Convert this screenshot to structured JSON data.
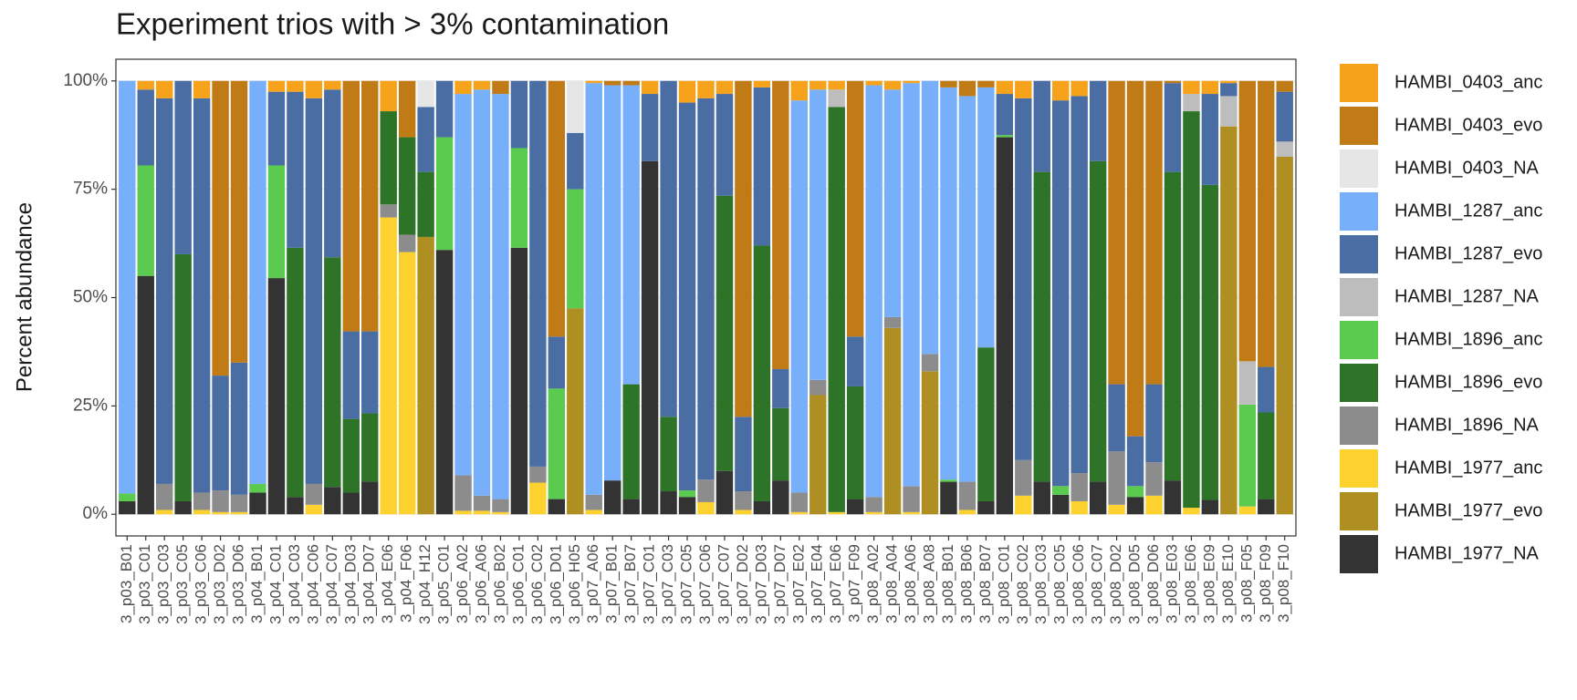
{
  "chart_data": {
    "type": "stacked_bar",
    "title": "Experiment trios with > 3% contamination",
    "y_label": "Percent abundance",
    "categories": [
      "3_p03_B01",
      "3_p03_C01",
      "3_p03_C03",
      "3_p03_C05",
      "3_p03_C06",
      "3_p03_D02",
      "3_p03_D06",
      "3_p04_B01",
      "3_p04_C01",
      "3_p04_C03",
      "3_p04_C06",
      "3_p04_C07",
      "3_p04_D03",
      "3_p04_D07",
      "3_p04_E06",
      "3_p04_F06",
      "3_p04_H12",
      "3_p05_C01",
      "3_p06_A02",
      "3_p06_A06",
      "3_p06_B02",
      "3_p06_C01",
      "3_p06_C02",
      "3_p06_D01",
      "3_p06_H05",
      "3_p07_A06",
      "3_p07_B01",
      "3_p07_B07",
      "3_p07_C01",
      "3_p07_C03",
      "3_p07_C05",
      "3_p07_C06",
      "3_p07_C07",
      "3_p07_D02",
      "3_p07_D03",
      "3_p07_D07",
      "3_p07_E02",
      "3_p07_E04",
      "3_p07_E06",
      "3_p07_F09",
      "3_p08_A02",
      "3_p08_A04",
      "3_p08_A06",
      "3_p08_A08",
      "3_p08_B01",
      "3_p08_B06",
      "3_p08_B07",
      "3_p08_C01",
      "3_p08_C02",
      "3_p08_C03",
      "3_p08_C05",
      "3_p08_C06",
      "3_p08_C07",
      "3_p08_D02",
      "3_p08_D05",
      "3_p08_D06",
      "3_p08_E03",
      "3_p08_E06",
      "3_p08_E09",
      "3_p08_E10",
      "3_p08_F05",
      "3_p08_F09",
      "3_p08_F10"
    ],
    "series": [
      {
        "name": "HAMBI_0403_anc",
        "color": "#F7A21B",
        "values": [
          0,
          2,
          4,
          0,
          4,
          0,
          0,
          0,
          2.5,
          2.5,
          4,
          2,
          0,
          0,
          7,
          0,
          0,
          0,
          3,
          2,
          0,
          0,
          0,
          0,
          0,
          0.5,
          0,
          0,
          3,
          0,
          5,
          4,
          3,
          0,
          1.5,
          0,
          4.5,
          2,
          2,
          0,
          1,
          2,
          0.5,
          0,
          0,
          0,
          0,
          3,
          4,
          0,
          4.5,
          3.5,
          0,
          0,
          0,
          0,
          0,
          3,
          3,
          0.5,
          0,
          0,
          0
        ]
      },
      {
        "name": "HAMBI_0403_evo",
        "color": "#C07A16",
        "values": [
          0,
          0,
          0,
          0,
          0,
          68,
          65,
          0,
          0,
          0,
          0,
          0,
          57.8,
          57.8,
          0,
          13,
          0,
          0,
          0,
          0,
          3,
          0,
          0,
          59,
          0,
          0,
          1,
          1,
          0,
          0,
          0,
          0,
          0,
          77.5,
          0,
          66.5,
          0,
          0,
          0,
          59,
          0,
          0,
          0,
          0,
          1.5,
          3.5,
          1.5,
          0,
          0,
          0,
          0,
          0,
          0,
          70,
          82,
          70,
          0.5,
          0,
          0,
          0,
          64.7,
          66,
          2.5
        ]
      },
      {
        "name": "HAMBI_0403_NA",
        "color": "#E6E6E6",
        "values": [
          0,
          0,
          0,
          0,
          0,
          0,
          0,
          0,
          0,
          0,
          0,
          0,
          0,
          0,
          0,
          0,
          6,
          0,
          0,
          0,
          0,
          0,
          0,
          0,
          12,
          0,
          0,
          0,
          0,
          0,
          0,
          0,
          0,
          0,
          0,
          0,
          0,
          0,
          0,
          0,
          0,
          0,
          0,
          0,
          0,
          0,
          0,
          0,
          0,
          0,
          0,
          0,
          0,
          0,
          0,
          0,
          0,
          0,
          0,
          0,
          0,
          0,
          0
        ]
      },
      {
        "name": "HAMBI_1287_anc",
        "color": "#77AFFA",
        "values": [
          95.2,
          0,
          0,
          0,
          0,
          0,
          0,
          93,
          0,
          0,
          0,
          0,
          0,
          0,
          0,
          0,
          0,
          0,
          88,
          93.7,
          93.5,
          0,
          0,
          0,
          0,
          95,
          91.2,
          69,
          0,
          0,
          0,
          0,
          0,
          0,
          0,
          0,
          90.5,
          67,
          0,
          0,
          95,
          52.5,
          93,
          63,
          90.5,
          89,
          60,
          0,
          0,
          0,
          0,
          0,
          0,
          0,
          0,
          0,
          0,
          0,
          0,
          0,
          0,
          0,
          0
        ]
      },
      {
        "name": "HAMBI_1287_evo",
        "color": "#4A6EA3",
        "values": [
          0,
          17.5,
          89,
          40,
          91,
          26.5,
          30.5,
          0,
          17,
          36,
          89,
          38.7,
          20.2,
          18.9,
          0,
          0,
          15,
          13,
          0,
          0,
          0,
          15.5,
          89,
          12,
          13,
          0,
          0,
          0,
          15.5,
          77.5,
          89.5,
          88,
          23.5,
          17.2,
          36.5,
          9,
          0,
          0,
          0,
          11.5,
          0,
          0,
          0,
          0,
          0,
          0,
          0,
          9.5,
          83.5,
          21,
          89,
          87,
          18.5,
          15.5,
          11.5,
          18,
          20.5,
          0,
          21,
          3,
          0,
          10.5,
          11.5
        ]
      },
      {
        "name": "HAMBI_1287_NA",
        "color": "#BDBDBD",
        "values": [
          0,
          0,
          0,
          0,
          0,
          0,
          0,
          0,
          0,
          0,
          0,
          0,
          0,
          0,
          0,
          0,
          0,
          0,
          0,
          0,
          0,
          0,
          0,
          0,
          0,
          0,
          0,
          0,
          0,
          0,
          0,
          0,
          0,
          0,
          0,
          0,
          0,
          0,
          4,
          0,
          0,
          0,
          0,
          0,
          0,
          0,
          0,
          0,
          0,
          0,
          0,
          0,
          0,
          0,
          0,
          0,
          0,
          4,
          0,
          7,
          10,
          0,
          3.5
        ]
      },
      {
        "name": "HAMBI_1896_anc",
        "color": "#5ACB4F",
        "values": [
          1.8,
          25.5,
          0,
          0,
          0,
          0,
          0,
          2,
          26,
          0,
          0,
          0,
          0,
          0,
          0,
          0,
          0,
          26,
          0,
          0,
          0,
          23,
          0,
          25.5,
          27.5,
          0,
          0,
          0,
          0,
          0,
          1.5,
          0,
          0,
          0,
          0,
          0,
          0,
          0,
          0,
          0,
          0,
          0,
          0,
          0,
          0.5,
          0,
          0,
          0.5,
          0,
          0,
          2,
          0,
          0,
          0,
          2.5,
          0,
          0,
          0,
          0,
          0,
          23.5,
          0,
          0
        ]
      },
      {
        "name": "HAMBI_1896_evo",
        "color": "#2E7428",
        "values": [
          0,
          0,
          0,
          57,
          0,
          0,
          0,
          0,
          0,
          57.5,
          0,
          53,
          17,
          15.8,
          21.5,
          22.5,
          15,
          0,
          0,
          0,
          0,
          0,
          0,
          0,
          0,
          0,
          0,
          26.5,
          0,
          17.2,
          0,
          0,
          63.5,
          0,
          59,
          16.7,
          0,
          0,
          93.5,
          26,
          0,
          0,
          0,
          0,
          0,
          0,
          35.5,
          0,
          0,
          71.5,
          0,
          0,
          74,
          0,
          0,
          0,
          71.2,
          91.5,
          72.7,
          0,
          0,
          20,
          0
        ]
      },
      {
        "name": "HAMBI_1896_NA",
        "color": "#8C8C8C",
        "values": [
          0,
          0,
          6,
          0,
          4,
          5,
          4,
          0,
          0,
          0,
          4.8,
          0,
          0,
          0,
          3,
          4,
          0,
          0,
          8.2,
          3.5,
          3,
          0,
          3.7,
          0,
          0,
          3.5,
          0,
          0,
          0,
          0,
          0,
          5.2,
          0,
          4.3,
          0,
          0,
          4.5,
          3.5,
          0,
          0,
          3.5,
          2.5,
          6,
          4,
          0,
          6.5,
          0,
          0,
          8.2,
          0,
          0,
          6.5,
          0,
          12.3,
          0,
          7.7,
          0,
          0,
          0,
          0,
          0,
          0,
          0
        ]
      },
      {
        "name": "HAMBI_1977_anc",
        "color": "#FDD22F",
        "values": [
          0,
          0,
          1,
          0,
          1,
          0.5,
          0.5,
          0,
          0,
          0,
          2.2,
          0,
          0,
          0,
          68.5,
          60.5,
          0,
          0,
          0.8,
          0.8,
          0.5,
          0,
          7.3,
          0,
          0,
          1,
          0,
          0,
          0,
          0,
          0,
          2.8,
          0,
          1,
          0,
          0,
          0.5,
          0,
          0.5,
          0,
          0.5,
          0,
          0.5,
          0,
          0,
          1,
          0,
          0,
          4.3,
          0,
          0,
          3,
          0,
          2.2,
          0,
          4.3,
          0,
          1.5,
          0,
          0,
          1.8,
          0,
          0
        ]
      },
      {
        "name": "HAMBI_1977_evo",
        "color": "#B08F22",
        "values": [
          0,
          0,
          0,
          0,
          0,
          0,
          0,
          0,
          0,
          0,
          0,
          0,
          0,
          0,
          0,
          0,
          64,
          0,
          0,
          0,
          0,
          0,
          0,
          0,
          47.5,
          0,
          0,
          0,
          0,
          0,
          0,
          0,
          0,
          0,
          0,
          0,
          0,
          27.5,
          0,
          0,
          0,
          43,
          0,
          33,
          0,
          0,
          0,
          0,
          0,
          0,
          0,
          0,
          0,
          0,
          0,
          0,
          0,
          0,
          0,
          89.5,
          0,
          0,
          82.5
        ]
      },
      {
        "name": "HAMBI_1977_NA",
        "color": "#333333",
        "values": [
          3,
          55,
          0,
          3,
          0,
          0,
          0,
          5,
          54.5,
          4,
          0,
          6.3,
          5,
          7.5,
          0,
          0,
          0,
          61,
          0,
          0,
          0,
          61.5,
          0,
          3.5,
          0,
          0,
          7.8,
          3.5,
          81.5,
          5.3,
          4,
          0,
          10,
          0,
          3,
          7.8,
          0,
          0,
          0,
          3.5,
          0,
          0,
          0,
          0,
          7.5,
          0,
          3,
          87,
          0,
          7.5,
          4.5,
          0,
          7.5,
          0,
          4,
          0,
          7.8,
          0,
          3.3,
          0,
          0,
          3.5,
          0
        ]
      }
    ],
    "ylim": [
      -5,
      105
    ],
    "yticks": [
      {
        "value": 0,
        "label": "0%"
      },
      {
        "value": 25,
        "label": "25%"
      },
      {
        "value": 50,
        "label": "50%"
      },
      {
        "value": 75,
        "label": "75%"
      },
      {
        "value": 100,
        "label": "100%"
      }
    ],
    "grid": true,
    "legend": "right"
  }
}
